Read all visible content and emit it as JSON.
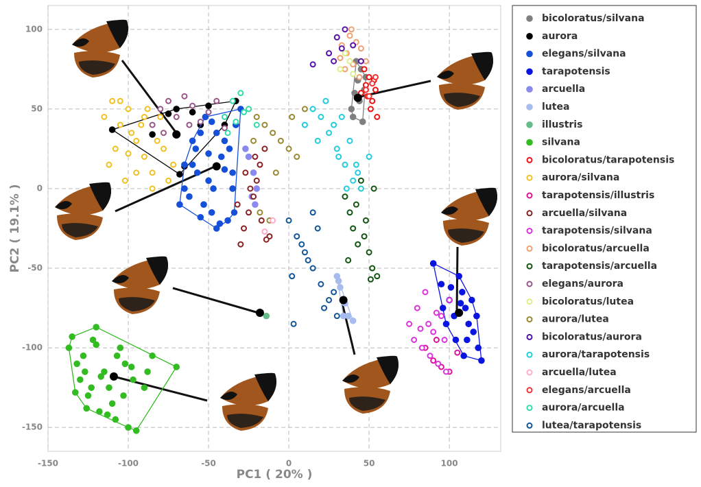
{
  "chart_data": {
    "type": "scatter",
    "xlabel": "PC1 ( 20% )",
    "ylabel": "PC2 ( 19.1% )",
    "xlim": [
      -150,
      132
    ],
    "ylim": [
      -165,
      115
    ],
    "xticks": [
      -150,
      -100,
      -50,
      0,
      50,
      100
    ],
    "yticks": [
      -150,
      -100,
      -50,
      0,
      50,
      100
    ],
    "grid": true,
    "legend": "right",
    "series": [
      {
        "name": "bicoloratus/silvana",
        "color": "#7f7f7f",
        "marker": "filled",
        "hull": true,
        "centroid": [
          43,
          57
        ],
        "x": [
          42,
          45,
          43,
          47,
          44,
          40,
          46,
          48,
          41,
          39
        ],
        "values": [
          80,
          75,
          68,
          62,
          55,
          45,
          42,
          70,
          60,
          50
        ]
      },
      {
        "name": "aurora",
        "color": "#000000",
        "marker": "filled",
        "hull": true,
        "centroid": [
          -70,
          34
        ],
        "x": [
          -110,
          -85,
          -75,
          -70,
          -65,
          -60,
          -55,
          -40,
          -33,
          -68,
          -50
        ],
        "values": [
          37,
          34,
          47,
          50,
          14,
          48,
          40,
          40,
          55,
          9,
          52
        ]
      },
      {
        "name": "elegans/silvana",
        "color": "#1650d8",
        "marker": "filled",
        "hull": true,
        "centroid": [
          -45,
          14
        ],
        "x": [
          -68,
          -65,
          -60,
          -58,
          -55,
          -52,
          -50,
          -48,
          -45,
          -42,
          -40,
          -38,
          -35,
          -33,
          -30,
          -62,
          -57,
          -53,
          -47,
          -43,
          -37,
          -34,
          -60,
          -50,
          -40,
          -55,
          -45,
          -65,
          -35,
          -48
        ],
        "values": [
          -10,
          0,
          15,
          25,
          35,
          45,
          5,
          -15,
          -25,
          20,
          30,
          -20,
          10,
          40,
          50,
          -5,
          10,
          -10,
          0,
          -22,
          25,
          -15,
          30,
          22,
          12,
          -18,
          35,
          15,
          0,
          42
        ]
      },
      {
        "name": "tarapotensis",
        "color": "#0a14e0",
        "marker": "filled",
        "hull": true,
        "centroid": [
          106,
          -78
        ],
        "x": [
          90,
          95,
          100,
          103,
          106,
          108,
          110,
          112,
          115,
          118,
          120,
          98,
          104,
          109,
          114,
          117,
          101,
          107,
          111,
          96
        ],
        "values": [
          -47,
          -60,
          -70,
          -80,
          -55,
          -65,
          -75,
          -85,
          -90,
          -100,
          -108,
          -85,
          -95,
          -105,
          -70,
          -80,
          -62,
          -72,
          -95,
          -75
        ]
      },
      {
        "name": "arcuella",
        "color": "#8a8aee",
        "marker": "filled",
        "x": [
          -25,
          -22,
          -20,
          -23,
          -21,
          -27
        ],
        "values": [
          20,
          10,
          0,
          -5,
          -10,
          25
        ]
      },
      {
        "name": "lutea",
        "color": "#a8bbee",
        "marker": "filled",
        "hull": true,
        "centroid": [
          34,
          -70
        ],
        "x": [
          30,
          32,
          35,
          37,
          40,
          34,
          31
        ],
        "values": [
          -55,
          -62,
          -72,
          -80,
          -83,
          -80,
          -58
        ]
      },
      {
        "name": "illustris",
        "color": "#66bb88",
        "marker": "filled",
        "centroid": [
          -18,
          -78
        ],
        "x": [
          -14
        ],
        "values": [
          -80
        ]
      },
      {
        "name": "silvana",
        "color": "#33bb22",
        "marker": "filled",
        "hull": true,
        "centroid": [
          -109,
          -118
        ],
        "x": [
          -137,
          -135,
          -132,
          -130,
          -128,
          -125,
          -122,
          -120,
          -118,
          -115,
          -112,
          -110,
          -108,
          -105,
          -102,
          -100,
          -97,
          -95,
          -133,
          -127,
          -123,
          -117,
          -113,
          -107,
          -103,
          -98,
          -88,
          -85,
          -90,
          -70,
          -120,
          -126
        ],
        "values": [
          -100,
          -93,
          -110,
          -120,
          -105,
          -130,
          -95,
          -87,
          -140,
          -115,
          -125,
          -135,
          -145,
          -100,
          -110,
          -150,
          -120,
          -152,
          -128,
          -115,
          -125,
          -118,
          -142,
          -105,
          -130,
          -112,
          -115,
          -105,
          -125,
          -112,
          -98,
          -138
        ]
      },
      {
        "name": "bicoloratus/tarapotensis",
        "color": "#ee1111",
        "marker": "open",
        "x": [
          45,
          48,
          50,
          52,
          54,
          47,
          51,
          53,
          49,
          55
        ],
        "values": [
          60,
          65,
          70,
          55,
          62,
          75,
          50,
          68,
          58,
          45
        ]
      },
      {
        "name": "aurora/silvana",
        "color": "#f2c020",
        "marker": "open",
        "x": [
          -115,
          -110,
          -105,
          -100,
          -95,
          -90,
          -85,
          -80,
          -75,
          -108,
          -98,
          -88,
          -78,
          -112,
          -102,
          -92,
          -82,
          -72,
          -105,
          -95,
          -85,
          -100,
          -90
        ],
        "values": [
          45,
          55,
          40,
          50,
          30,
          20,
          10,
          45,
          5,
          25,
          35,
          50,
          25,
          15,
          5,
          40,
          30,
          15,
          55,
          10,
          0,
          22,
          45
        ]
      },
      {
        "name": "tarapotensis/illustris",
        "color": "#dd1199",
        "marker": "open",
        "x": [
          85,
          90,
          95,
          100,
          105,
          92
        ],
        "values": [
          -100,
          -108,
          -112,
          -115,
          -103,
          -95
        ]
      },
      {
        "name": "arcuella/silvana",
        "color": "#882222",
        "marker": "open",
        "x": [
          -30,
          -28,
          -25,
          -22,
          -20,
          -18,
          -15,
          -12,
          -27,
          -24,
          -17,
          -14,
          -21,
          -32
        ],
        "values": [
          -35,
          -25,
          -15,
          -5,
          5,
          15,
          25,
          -30,
          10,
          0,
          -20,
          -32,
          20,
          -10
        ]
      },
      {
        "name": "tarapotensis/silvana",
        "color": "#dd33dd",
        "marker": "open",
        "x": [
          75,
          80,
          85,
          90,
          95,
          100,
          78,
          83,
          88,
          93,
          98,
          87,
          82,
          97,
          92
        ],
        "values": [
          -85,
          -75,
          -65,
          -90,
          -80,
          -70,
          -95,
          -100,
          -105,
          -110,
          -115,
          -85,
          -88,
          -95,
          -78
        ]
      },
      {
        "name": "bicoloratus/arcuella",
        "color": "#f0a070",
        "marker": "open",
        "x": [
          30,
          33,
          36,
          39,
          42,
          45,
          48,
          35,
          40,
          44,
          32,
          38
        ],
        "values": [
          95,
          90,
          85,
          100,
          92,
          88,
          80,
          75,
          78,
          70,
          82,
          96
        ]
      },
      {
        "name": "tarapotensis/arcuella",
        "color": "#115511",
        "marker": "open",
        "x": [
          35,
          38,
          40,
          43,
          45,
          48,
          50,
          52,
          55,
          42,
          47,
          53,
          37,
          51
        ],
        "values": [
          -5,
          -15,
          -25,
          -35,
          5,
          -20,
          -40,
          -50,
          -55,
          -10,
          -30,
          0,
          -45,
          -57
        ]
      },
      {
        "name": "elegans/aurora",
        "color": "#995588",
        "marker": "open",
        "x": [
          -85,
          -80,
          -75,
          -70,
          -65,
          -60,
          -55,
          -50,
          -45,
          -40,
          -78,
          -62
        ],
        "values": [
          40,
          50,
          55,
          45,
          58,
          52,
          42,
          48,
          55,
          38,
          35,
          40
        ]
      },
      {
        "name": "bicoloratus/lutea",
        "color": "#ddee88",
        "marker": "open",
        "x": [
          32,
          35,
          38,
          40
        ],
        "values": [
          75,
          85,
          80,
          72
        ]
      },
      {
        "name": "aurora/lutea",
        "color": "#998833",
        "marker": "open",
        "x": [
          -25,
          -20,
          -15,
          -10,
          -5,
          0,
          5,
          10,
          -18,
          -8,
          2,
          -12,
          -22
        ],
        "values": [
          50,
          45,
          40,
          35,
          30,
          25,
          20,
          50,
          -15,
          10,
          45,
          -20,
          30
        ]
      },
      {
        "name": "bicoloratus/aurora",
        "color": "#5511aa",
        "marker": "open",
        "x": [
          15,
          25,
          30,
          35,
          40,
          45,
          33,
          28
        ],
        "values": [
          78,
          85,
          95,
          100,
          90,
          80,
          88,
          80
        ]
      },
      {
        "name": "aurora/tarapotensis",
        "color": "#22ccdd",
        "marker": "open",
        "x": [
          10,
          15,
          20,
          25,
          30,
          35,
          40,
          45,
          50,
          28,
          33,
          38,
          43,
          23,
          18,
          36,
          42,
          31
        ],
        "values": [
          40,
          50,
          45,
          35,
          25,
          15,
          5,
          0,
          20,
          40,
          45,
          30,
          10,
          55,
          30,
          0,
          15,
          20
        ]
      },
      {
        "name": "arcuella/lutea",
        "color": "#ffaacc",
        "marker": "open",
        "x": [
          -15,
          -10
        ],
        "values": [
          -27,
          -20
        ]
      },
      {
        "name": "elegans/arcuella",
        "color": "#ee3333",
        "marker": "open",
        "x": [
          48,
          52,
          50,
          54
        ],
        "values": [
          62,
          66,
          58,
          70
        ]
      },
      {
        "name": "aurora/arcuella",
        "color": "#33ddaa",
        "marker": "open",
        "x": [
          -40,
          -35,
          -30,
          -25,
          -20,
          -38,
          -28,
          -33
        ],
        "values": [
          45,
          55,
          60,
          50,
          40,
          35,
          48,
          42
        ]
      },
      {
        "name": "lutea/tarapotensis",
        "color": "#115599",
        "marker": "open",
        "x": [
          0,
          5,
          10,
          15,
          20,
          25,
          30,
          8,
          12,
          18,
          3,
          22,
          28,
          2,
          15
        ],
        "values": [
          -20,
          -30,
          -40,
          -50,
          -60,
          -70,
          -80,
          -35,
          -45,
          -25,
          -85,
          -75,
          -65,
          -55,
          -15
        ]
      }
    ]
  }
}
